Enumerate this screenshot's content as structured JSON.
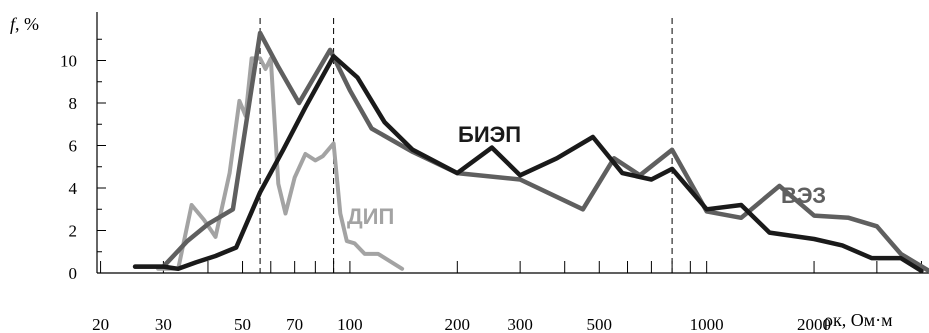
{
  "chart_data": {
    "type": "line",
    "y_axis_title": "f, %",
    "x_axis_title": "ρк, Ом·м",
    "x_scale": "log",
    "xlim": [
      16,
      4200
    ],
    "ylim": [
      0,
      12
    ],
    "x_tick_labels": [
      "20",
      "30",
      "50",
      "70",
      "100",
      "200",
      "300",
      "500",
      "1000",
      "2000"
    ],
    "x_tick_values": [
      20,
      30,
      50,
      70,
      100,
      200,
      300,
      500,
      1000,
      2000
    ],
    "x_major_ticks": [
      20,
      30,
      40,
      50,
      60,
      70,
      80,
      90,
      100,
      200,
      300,
      400,
      500,
      600,
      700,
      800,
      900,
      1000,
      2000,
      3000,
      4000
    ],
    "y_tick_values": [
      0,
      2,
      4,
      6,
      8,
      10
    ],
    "y_tick_labels": [
      "0",
      "2",
      "4",
      "6",
      "8",
      "10"
    ],
    "dashed_lines_x": [
      56,
      90,
      800
    ],
    "colors": {
      "biep": "#1a1a1a",
      "vez": "#5f5f5f",
      "dip": "#a3a3a3"
    },
    "series": [
      {
        "name": "БИЭП",
        "color_key": "biep",
        "x": [
          25,
          30,
          33,
          37,
          42,
          48,
          56,
          65,
          75,
          90,
          105,
          125,
          150,
          200,
          250,
          300,
          380,
          480,
          580,
          700,
          800,
          1000,
          1250,
          1500,
          2000,
          2400,
          2900,
          3500,
          4000
        ],
        "y": [
          0.3,
          0.3,
          0.2,
          0.5,
          0.8,
          1.2,
          3.8,
          5.8,
          7.8,
          10.2,
          9.2,
          7.1,
          5.8,
          4.7,
          5.9,
          4.6,
          5.4,
          6.4,
          4.7,
          4.4,
          4.9,
          3.0,
          3.2,
          1.9,
          1.6,
          1.3,
          0.7,
          0.7,
          0.1
        ]
      },
      {
        "name": "ВЭЗ",
        "color_key": "vez",
        "x": [
          25,
          30,
          35,
          40,
          47,
          56,
          63,
          72,
          88,
          100,
          115,
          150,
          200,
          300,
          450,
          550,
          650,
          800,
          1000,
          1250,
          1600,
          2000,
          2500,
          3000,
          3500,
          4200
        ],
        "y": [
          0.3,
          0.3,
          1.5,
          2.3,
          3.0,
          11.3,
          9.7,
          8.0,
          10.5,
          8.6,
          6.8,
          5.7,
          4.7,
          4.4,
          3.0,
          5.4,
          4.6,
          5.8,
          2.9,
          2.6,
          4.1,
          2.7,
          2.6,
          2.2,
          0.9,
          0.1
        ]
      },
      {
        "name": "ДИП",
        "color_key": "dip",
        "x": [
          29,
          33,
          36,
          39,
          42,
          46,
          49,
          51,
          53,
          56,
          58,
          60,
          63,
          66,
          70,
          75,
          80,
          84,
          90,
          94,
          98,
          103,
          110,
          120,
          140
        ],
        "y": [
          0.2,
          0.2,
          3.2,
          2.5,
          1.7,
          4.7,
          8.1,
          7.4,
          10.1,
          10.1,
          9.6,
          10.1,
          4.2,
          2.8,
          4.5,
          5.6,
          5.3,
          5.5,
          6.1,
          2.8,
          1.5,
          1.4,
          0.9,
          0.9,
          0.2
        ]
      }
    ]
  }
}
